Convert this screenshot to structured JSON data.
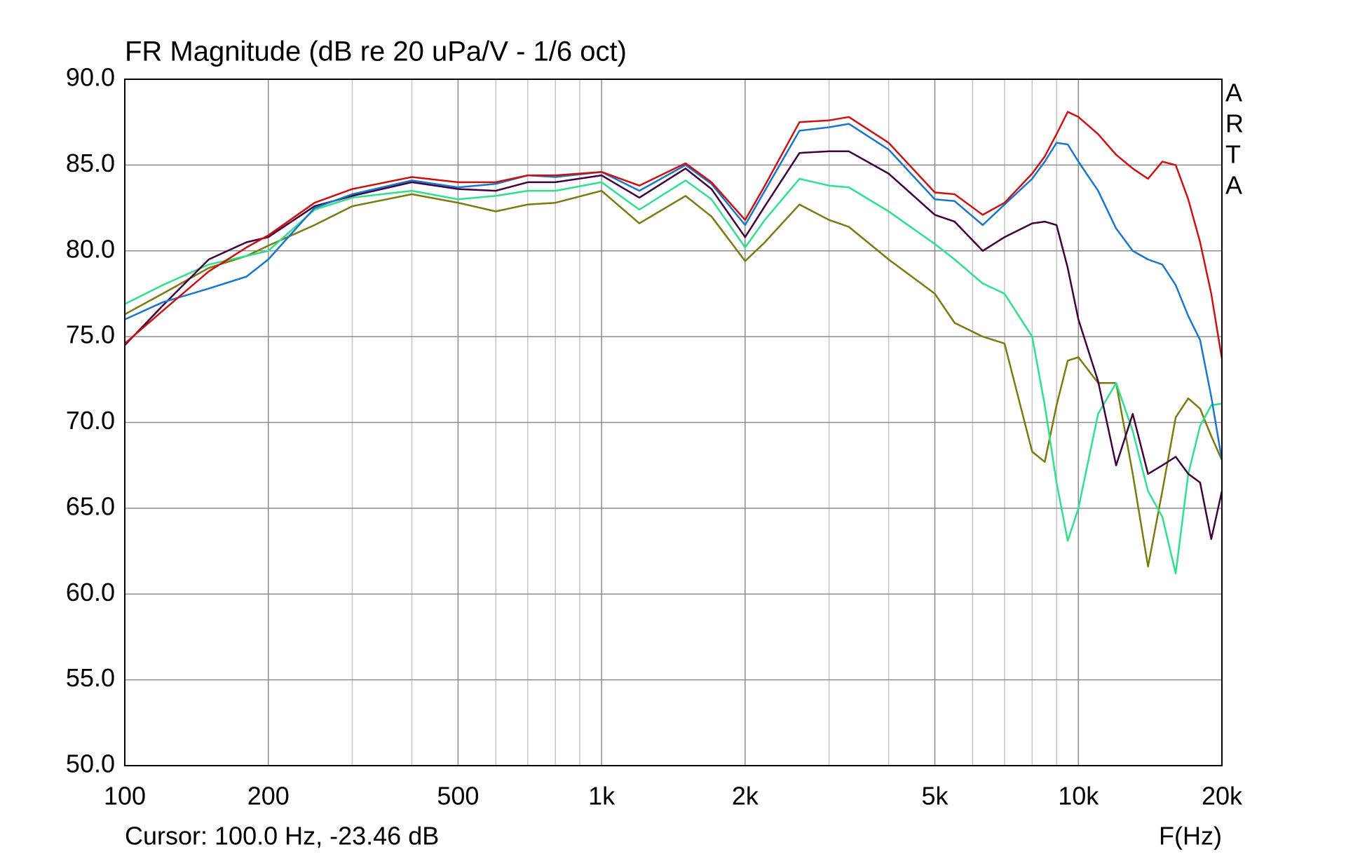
{
  "chart_data": {
    "type": "line",
    "title": "FR Magnitude (dB re 20 uPa/V - 1/6 oct)",
    "x_label": "F(Hz)",
    "cursor": "Cursor: 100.0 Hz, -23.46 dB",
    "watermark": [
      "A",
      "R",
      "T",
      "A"
    ],
    "log_x": true,
    "grid": true,
    "xlim": [
      100,
      20000
    ],
    "ylim": [
      50,
      90
    ],
    "xticks": [
      100,
      200,
      500,
      {
        "value": 1000,
        "label": "1k"
      },
      {
        "value": 2000,
        "label": "2k"
      },
      {
        "value": 5000,
        "label": "5k"
      },
      {
        "value": 10000,
        "label": "10k"
      },
      {
        "value": 20000,
        "label": "20k"
      }
    ],
    "x_minor_grid": [
      300,
      400,
      600,
      700,
      800,
      900,
      3000,
      4000,
      6000,
      7000,
      8000,
      9000
    ],
    "yticks": [
      {
        "value": 90,
        "label": "90.0"
      },
      {
        "value": 85,
        "label": "85.0"
      },
      {
        "value": 80,
        "label": "80.0"
      },
      {
        "value": 75,
        "label": "75.0"
      },
      {
        "value": 70,
        "label": "70.0"
      },
      {
        "value": 65,
        "label": "65.0"
      },
      {
        "value": 60,
        "label": "60.0"
      },
      {
        "value": 55,
        "label": "55.0"
      },
      {
        "value": 50,
        "label": "50.0"
      }
    ],
    "x": [
      100,
      120,
      150,
      180,
      200,
      250,
      300,
      400,
      500,
      600,
      700,
      800,
      1000,
      1200,
      1500,
      1700,
      2000,
      2200,
      2600,
      3000,
      3300,
      4000,
      5000,
      5500,
      6300,
      7000,
      8000,
      8500,
      9000,
      9500,
      10000,
      11000,
      12000,
      13000,
      14000,
      15000,
      16000,
      17000,
      18000,
      19000,
      20000
    ],
    "series": [
      {
        "color": "#7a7a10",
        "values": [
          76.3,
          77.5,
          79.0,
          79.7,
          80.3,
          81.5,
          82.6,
          83.3,
          82.8,
          82.3,
          82.7,
          82.8,
          83.5,
          81.6,
          83.2,
          82.0,
          79.4,
          80.5,
          82.7,
          81.8,
          81.4,
          79.5,
          77.5,
          75.8,
          75.0,
          74.6,
          68.3,
          67.7,
          71.0,
          73.6,
          73.8,
          72.3,
          72.3,
          67.0,
          61.6,
          66.0,
          70.3,
          71.4,
          70.8,
          69.2,
          67.8
        ]
      },
      {
        "color": "#2ee08c",
        "values": [
          76.9,
          78.0,
          79.2,
          79.7,
          80.0,
          82.4,
          83.1,
          83.5,
          83.0,
          83.2,
          83.5,
          83.5,
          84.0,
          82.4,
          84.1,
          83.0,
          80.2,
          81.8,
          84.2,
          83.8,
          83.7,
          82.3,
          80.4,
          79.5,
          78.1,
          77.5,
          75.0,
          71.0,
          66.5,
          63.1,
          65.0,
          70.5,
          72.3,
          69.5,
          66.0,
          64.5,
          61.2,
          67.0,
          69.8,
          71.0,
          71.1
        ]
      },
      {
        "color": "#400040",
        "values": [
          74.5,
          76.8,
          79.5,
          80.5,
          80.8,
          82.6,
          83.2,
          84.0,
          83.6,
          83.5,
          84.0,
          84.0,
          84.4,
          83.1,
          84.8,
          83.6,
          80.8,
          82.6,
          85.7,
          85.8,
          85.8,
          84.5,
          82.1,
          81.7,
          80.0,
          80.8,
          81.6,
          81.7,
          81.5,
          79.0,
          76.0,
          72.4,
          67.5,
          70.5,
          67.0,
          67.5,
          68.0,
          67.0,
          66.5,
          63.2,
          66.0
        ]
      },
      {
        "color": "#1a75cc",
        "values": [
          76.0,
          77.0,
          77.8,
          78.5,
          79.5,
          82.5,
          83.3,
          84.1,
          83.7,
          83.9,
          84.4,
          84.3,
          84.6,
          83.5,
          85.0,
          83.9,
          81.5,
          83.5,
          87.0,
          87.2,
          87.4,
          85.9,
          83.0,
          82.9,
          81.5,
          82.7,
          84.2,
          85.2,
          86.3,
          86.2,
          85.2,
          83.5,
          81.3,
          80.0,
          79.5,
          79.2,
          78.0,
          76.2,
          74.8,
          71.5,
          67.8
        ]
      },
      {
        "color": "#cc1010",
        "values": [
          74.6,
          76.5,
          78.8,
          80.2,
          80.9,
          82.8,
          83.6,
          84.3,
          84.0,
          84.0,
          84.4,
          84.4,
          84.6,
          83.8,
          85.1,
          84.0,
          81.8,
          83.8,
          87.5,
          87.6,
          87.8,
          86.3,
          83.4,
          83.3,
          82.1,
          82.8,
          84.5,
          85.5,
          86.8,
          88.1,
          87.8,
          86.8,
          85.6,
          84.8,
          84.2,
          85.2,
          85.0,
          83.0,
          80.5,
          77.5,
          73.7
        ]
      }
    ]
  }
}
